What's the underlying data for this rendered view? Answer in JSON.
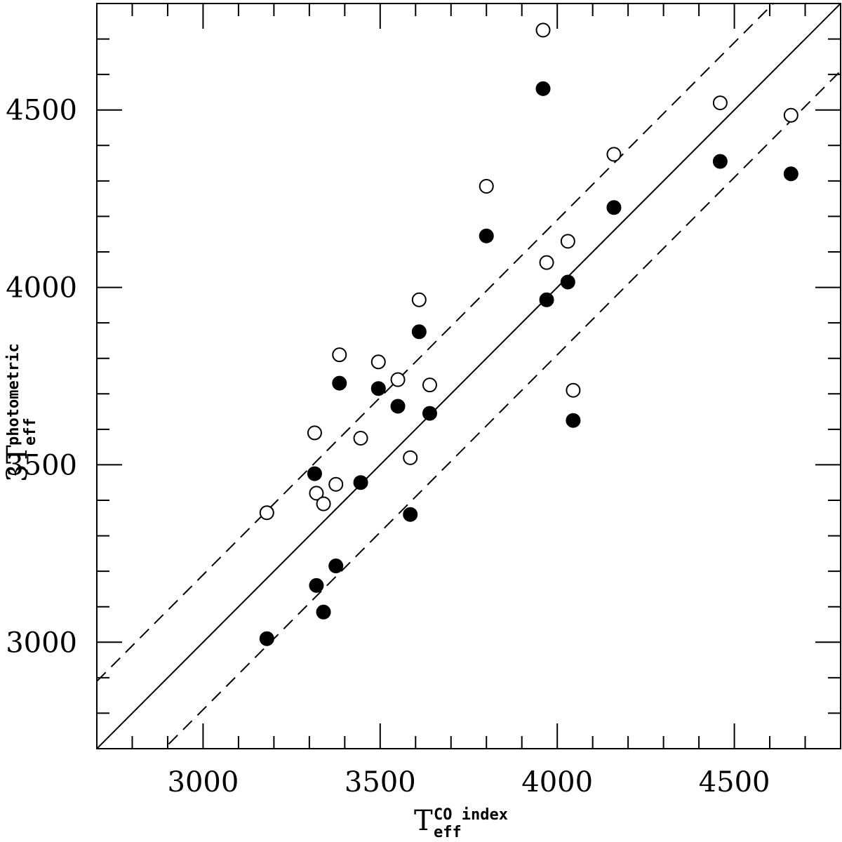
{
  "chart_data": {
    "type": "scatter",
    "xlabel": {
      "main": "T",
      "sub": "eff",
      "sup": "CO index"
    },
    "ylabel": {
      "main": "T",
      "sub": "eff",
      "sup": "photometric",
      "prefix": "3"
    },
    "xlim": [
      2700,
      4800
    ],
    "ylim": [
      2700,
      4800
    ],
    "x_ticks": [
      3000,
      3500,
      4000,
      4500
    ],
    "y_ticks": [
      3000,
      3500,
      4000,
      4500
    ],
    "minor_tick_step": 100,
    "grid": false,
    "lines": [
      {
        "name": "",
        "style": "solid",
        "points": [
          [
            2700,
            2700
          ],
          [
            4800,
            4800
          ]
        ]
      },
      {
        "name": "",
        "style": "dashed",
        "points": [
          [
            2700,
            2890
          ],
          [
            4800,
            4990
          ]
        ]
      },
      {
        "name": "",
        "style": "dashed",
        "points": [
          [
            2700,
            2510
          ],
          [
            4800,
            4610
          ]
        ]
      }
    ],
    "series": [
      {
        "name": "",
        "marker": "open-circle",
        "points": [
          [
            3960,
            4725
          ],
          [
            4460,
            4520
          ],
          [
            4660,
            4485
          ],
          [
            4160,
            4375
          ],
          [
            3800,
            4285
          ],
          [
            4030,
            4130
          ],
          [
            3970,
            4070
          ],
          [
            3610,
            3965
          ],
          [
            3385,
            3810
          ],
          [
            3495,
            3790
          ],
          [
            3550,
            3740
          ],
          [
            3640,
            3725
          ],
          [
            4045,
            3710
          ],
          [
            3315,
            3590
          ],
          [
            3445,
            3575
          ],
          [
            3585,
            3520
          ],
          [
            3375,
            3445
          ],
          [
            3320,
            3420
          ],
          [
            3340,
            3390
          ],
          [
            3180,
            3365
          ]
        ]
      },
      {
        "name": "",
        "marker": "filled-circle",
        "points": [
          [
            3960,
            4560
          ],
          [
            4460,
            4355
          ],
          [
            4660,
            4320
          ],
          [
            4160,
            4225
          ],
          [
            3800,
            4145
          ],
          [
            4030,
            4015
          ],
          [
            3970,
            3965
          ],
          [
            3610,
            3875
          ],
          [
            3385,
            3730
          ],
          [
            3495,
            3715
          ],
          [
            3550,
            3665
          ],
          [
            3640,
            3645
          ],
          [
            4045,
            3625
          ],
          [
            3315,
            3475
          ],
          [
            3445,
            3450
          ],
          [
            3585,
            3360
          ],
          [
            3375,
            3215
          ],
          [
            3320,
            3160
          ],
          [
            3340,
            3085
          ],
          [
            3180,
            3010
          ]
        ]
      }
    ]
  }
}
